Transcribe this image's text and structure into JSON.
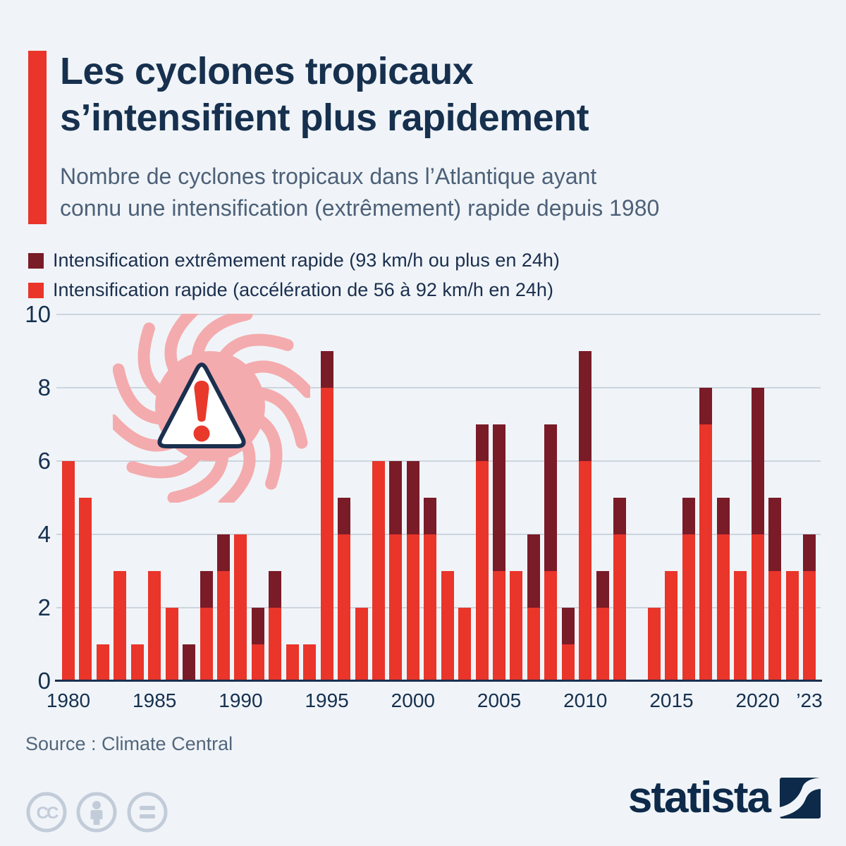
{
  "page": {
    "background": "#f0f4f8",
    "accent_color": "#e9352a",
    "navy": "#16304e"
  },
  "header": {
    "title_line1": "Les cyclones tropicaux",
    "title_line2": "s’intensifient plus rapidement",
    "subtitle_line1": "Nombre de cyclones tropicaux dans l’Atlantique ayant",
    "subtitle_line2": "connu une intensification (extrêmement) rapide depuis 1980"
  },
  "legend": {
    "items": [
      {
        "label": "Intensification extrêmement rapide (93 km/h ou plus en 24h)",
        "color": "#7a1b28"
      },
      {
        "label": "Intensification rapide (accélération de 56 à 92 km/h en 24h)",
        "color": "#e9352a"
      }
    ]
  },
  "chart_data": {
    "type": "bar",
    "stacked": true,
    "title": "Les cyclones tropicaux s’intensifient plus rapidement",
    "subtitle": "Nombre de cyclones tropicaux dans l’Atlantique ayant connu une intensification (extrêmement) rapide depuis 1980",
    "xlabel": "",
    "ylabel": "",
    "ylim": [
      0,
      10
    ],
    "yticks": [
      0,
      2,
      4,
      6,
      8,
      10
    ],
    "grid": true,
    "legend_position": "top-left",
    "x": [
      1980,
      1981,
      1982,
      1983,
      1984,
      1985,
      1986,
      1987,
      1988,
      1989,
      1990,
      1991,
      1992,
      1993,
      1994,
      1995,
      1996,
      1997,
      1998,
      1999,
      2000,
      2001,
      2002,
      2003,
      2004,
      2005,
      2006,
      2007,
      2008,
      2009,
      2010,
      2011,
      2012,
      2013,
      2014,
      2015,
      2016,
      2017,
      2018,
      2019,
      2020,
      2021,
      2022,
      2023
    ],
    "series": [
      {
        "name": "Intensification rapide (accélération de 56 à 92 km/h en 24h)",
        "color": "#e9352a",
        "values": [
          6,
          5,
          1,
          3,
          1,
          3,
          2,
          0,
          2,
          3,
          4,
          1,
          2,
          1,
          1,
          8,
          4,
          2,
          6,
          4,
          4,
          4,
          3,
          2,
          6,
          3,
          3,
          2,
          3,
          1,
          6,
          2,
          4,
          0,
          2,
          3,
          4,
          7,
          4,
          3,
          4,
          3,
          3,
          3
        ]
      },
      {
        "name": "Intensification extrêmement rapide (93 km/h ou plus en 24h)",
        "color": "#7a1b28",
        "values": [
          0,
          0,
          0,
          0,
          0,
          0,
          0,
          1,
          1,
          1,
          0,
          1,
          1,
          0,
          0,
          1,
          1,
          0,
          0,
          2,
          2,
          1,
          0,
          0,
          1,
          4,
          0,
          2,
          4,
          1,
          3,
          1,
          1,
          0,
          0,
          0,
          1,
          1,
          1,
          0,
          4,
          2,
          0,
          1
        ]
      }
    ],
    "xticks": [
      {
        "year": 1980,
        "label": "1980"
      },
      {
        "year": 1985,
        "label": "1985"
      },
      {
        "year": 1990,
        "label": "1990"
      },
      {
        "year": 1995,
        "label": "1995"
      },
      {
        "year": 2000,
        "label": "2000"
      },
      {
        "year": 2005,
        "label": "2005"
      },
      {
        "year": 2010,
        "label": "2010"
      },
      {
        "year": 2015,
        "label": "2015"
      },
      {
        "year": 2020,
        "label": "2020"
      },
      {
        "year": 2023,
        "label": "’23"
      }
    ]
  },
  "decoration": {
    "icon": "hurricane-warning-icon",
    "swirl_color": "#f4abae",
    "triangle_stroke": "#1b2f4e",
    "exclamation_color": "#e8392b"
  },
  "source": {
    "text": "Source : Climate Central"
  },
  "footer": {
    "brand_text": "statista",
    "brand_color": "#0e2a4a",
    "license_icons": [
      "cc-icon",
      "cc-by-person-icon",
      "cc-nd-equals-icon"
    ]
  }
}
